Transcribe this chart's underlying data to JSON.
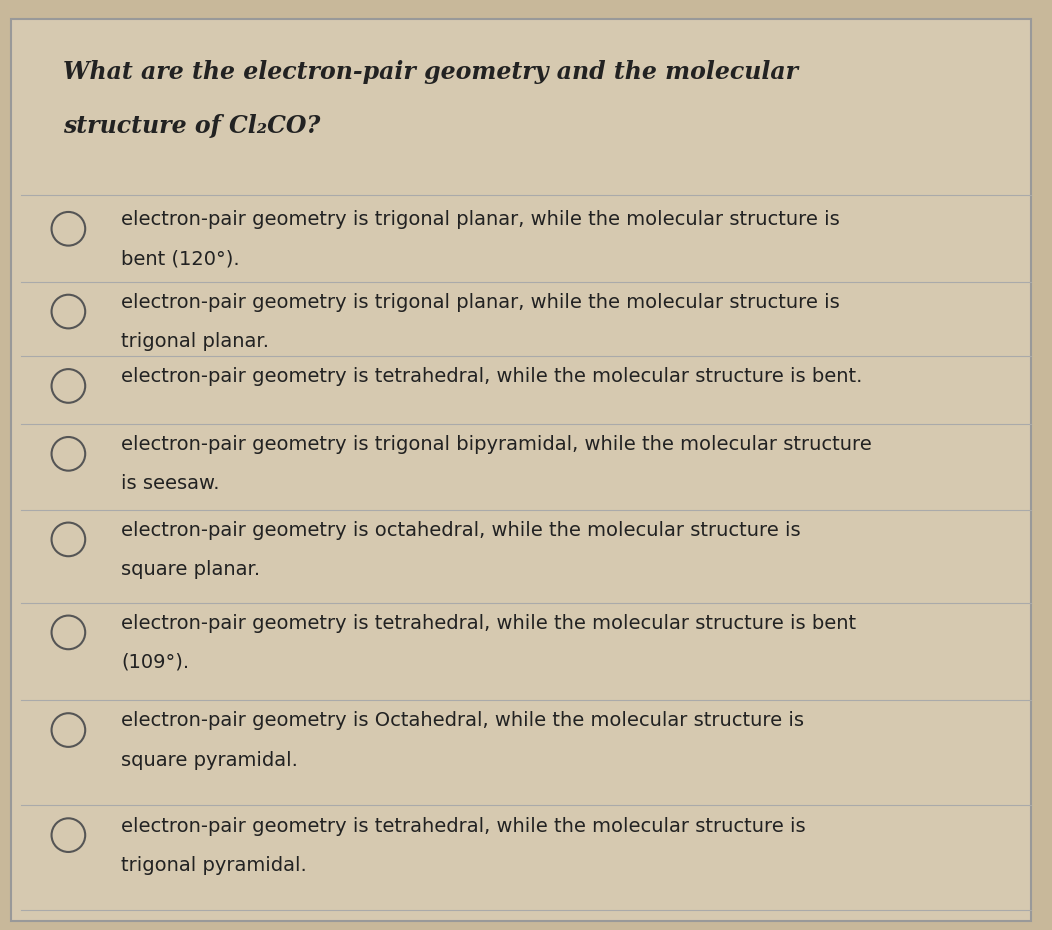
{
  "background_color": "#c8b89a",
  "card_color": "#d6c9b0",
  "title_line1": "What are the electron-pair geometry and the molecular",
  "title_line2": "structure of Cl₂CO?",
  "title_fontsize": 17,
  "title_fontweight": "bold",
  "options": [
    "electron-pair geometry is trigonal planar, while the molecular structure is\nbent (120°).",
    "electron-pair geometry is trigonal planar, while the molecular structure is\ntrigonal planar.",
    "electron-pair geometry is tetrahedral, while the molecular structure is bent.",
    "electron-pair geometry is trigonal bipyramidal, while the molecular structure\nis seesaw.",
    "electron-pair geometry is octahedral, while the molecular structure is\nsquare planar.",
    "electron-pair geometry is tetrahedral, while the molecular structure is bent\n(109°).",
    "electron-pair geometry is Octahedral, while the molecular structure is\nsquare pyramidal.",
    "electron-pair geometry is tetrahedral, while the molecular structure is\ntrigonal pyramidal."
  ],
  "option_fontsize": 14,
  "line_color": "#aaaaaa",
  "text_color": "#222222",
  "circle_color": "#555555"
}
